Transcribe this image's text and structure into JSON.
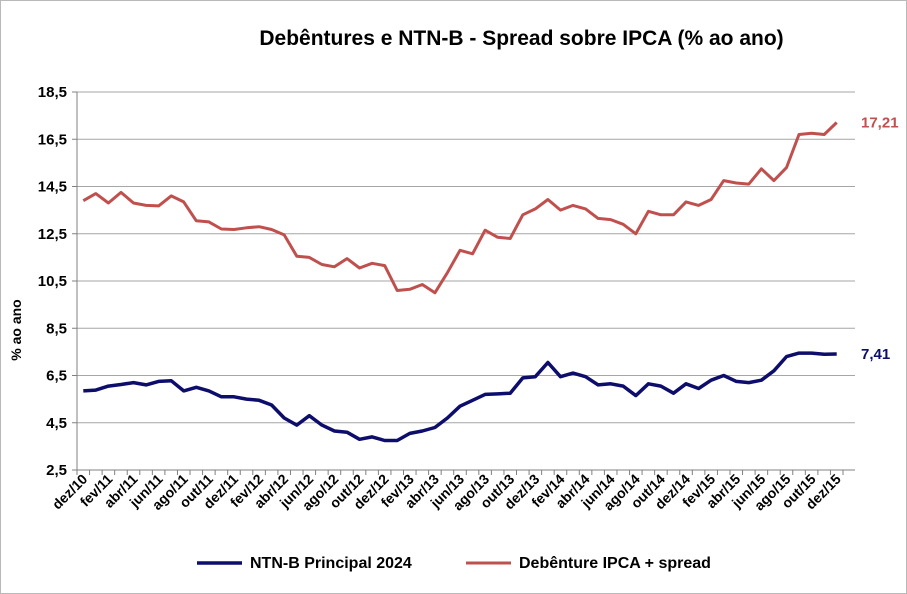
{
  "chart_data": {
    "type": "line",
    "title": "Debêntures  e NTN-B - Spread sobre IPCA (% ao ano)",
    "ylabel": "% ao ano",
    "xlabel": "",
    "ylim": [
      2.5,
      18.5
    ],
    "yticks": [
      "2,5",
      "4,5",
      "6,5",
      "8,5",
      "10,5",
      "12,5",
      "14,5",
      "16,5",
      "18,5"
    ],
    "ytick_values": [
      2.5,
      4.5,
      6.5,
      8.5,
      10.5,
      12.5,
      14.5,
      16.5,
      18.5
    ],
    "grid": true,
    "legend_position": "bottom",
    "x": [
      "dez/10",
      "jan/11",
      "fev/11",
      "mar/11",
      "abr/11",
      "mai/11",
      "jun/11",
      "jul/11",
      "ago/11",
      "set/11",
      "out/11",
      "nov/11",
      "dez/11",
      "jan/12",
      "fev/12",
      "mar/12",
      "abr/12",
      "mai/12",
      "jun/12",
      "jul/12",
      "ago/12",
      "set/12",
      "out/12",
      "nov/12",
      "dez/12",
      "jan/13",
      "fev/13",
      "mar/13",
      "abr/13",
      "mai/13",
      "jun/13",
      "jul/13",
      "ago/13",
      "set/13",
      "out/13",
      "nov/13",
      "dez/13",
      "jan/14",
      "fev/14",
      "mar/14",
      "abr/14",
      "mai/14",
      "jun/14",
      "jul/14",
      "ago/14",
      "set/14",
      "out/14",
      "nov/14",
      "dez/14",
      "jan/15",
      "fev/15",
      "mar/15",
      "abr/15",
      "mai/15",
      "jun/15",
      "jul/15",
      "ago/15",
      "set/15",
      "out/15",
      "nov/15",
      "dez/15"
    ],
    "xtick_labels": [
      "dez/10",
      "fev/11",
      "abr/11",
      "jun/11",
      "ago/11",
      "out/11",
      "dez/11",
      "fev/12",
      "abr/12",
      "jun/12",
      "ago/12",
      "out/12",
      "dez/12",
      "fev/13",
      "abr/13",
      "jun/13",
      "ago/13",
      "out/13",
      "dez/13",
      "fev/14",
      "abr/14",
      "jun/14",
      "ago/14",
      "out/14",
      "dez/14",
      "fev/15",
      "abr/15",
      "jun/15",
      "ago/15",
      "out/15",
      "dez/15"
    ],
    "series": [
      {
        "name": "NTN-B Principal 2024",
        "color": "#0d0d6b",
        "end_label": "7,41",
        "values": [
          5.85,
          5.88,
          6.05,
          6.12,
          6.2,
          6.1,
          6.25,
          6.28,
          5.85,
          6.0,
          5.85,
          5.6,
          5.6,
          5.5,
          5.45,
          5.25,
          4.7,
          4.4,
          4.8,
          4.4,
          4.15,
          4.1,
          3.8,
          3.9,
          3.75,
          3.75,
          4.05,
          4.15,
          4.3,
          4.7,
          5.2,
          5.45,
          5.7,
          5.72,
          5.75,
          6.4,
          6.45,
          7.05,
          6.45,
          6.6,
          6.45,
          6.1,
          6.15,
          6.05,
          5.65,
          6.15,
          6.05,
          5.75,
          6.15,
          5.95,
          6.3,
          6.5,
          6.25,
          6.2,
          6.3,
          6.7,
          7.3,
          7.45,
          7.45,
          7.4,
          7.41
        ]
      },
      {
        "name": "Debênture IPCA + spread",
        "color": "#c0504d",
        "end_label": "17,21",
        "values": [
          13.9,
          14.2,
          13.8,
          14.25,
          13.8,
          13.7,
          13.68,
          14.1,
          13.85,
          13.05,
          13.0,
          12.7,
          12.68,
          12.75,
          12.8,
          12.68,
          12.45,
          11.55,
          11.5,
          11.2,
          11.1,
          11.45,
          11.05,
          11.25,
          11.15,
          10.1,
          10.15,
          10.35,
          10.0,
          10.85,
          11.8,
          11.65,
          12.65,
          12.35,
          12.3,
          13.3,
          13.55,
          13.95,
          13.5,
          13.7,
          13.55,
          13.15,
          13.1,
          12.9,
          12.5,
          13.45,
          13.3,
          13.3,
          13.85,
          13.7,
          13.95,
          14.75,
          14.65,
          14.6,
          15.25,
          14.75,
          15.3,
          16.7,
          16.75,
          16.7,
          17.21
        ]
      }
    ]
  }
}
